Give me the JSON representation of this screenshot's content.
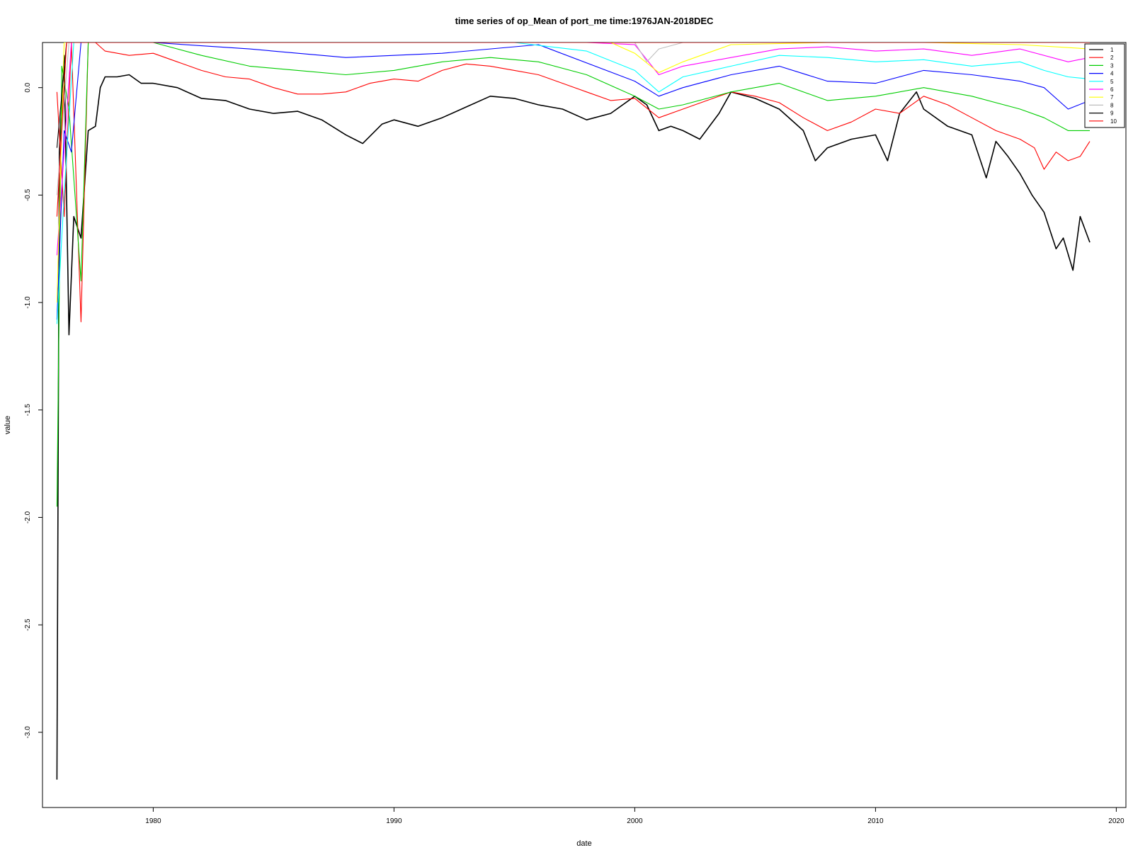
{
  "chart_data": {
    "type": "line",
    "title": "time series of op_Mean of port_me time:1976JAN-2018DEC",
    "xlabel": "date",
    "ylabel": "value",
    "xlim": [
      1975.4,
      2020.4
    ],
    "ylim": [
      -3.35,
      0.21
    ],
    "x_ticks": [
      1980,
      1990,
      2000,
      2010,
      2020
    ],
    "x_tick_labels": [
      "1980",
      "1990",
      "2000",
      "2010",
      "2020"
    ],
    "y_ticks": [
      0.0,
      -0.5,
      -1.0,
      -1.5,
      -2.0,
      -2.5,
      -3.0
    ],
    "y_tick_labels": [
      "0.0",
      "-0.5",
      "-1.0",
      "-1.5",
      "-2.0",
      "-2.5",
      "-3.0"
    ],
    "grid": false,
    "legend_position": "top-right",
    "series": [
      {
        "name": "1",
        "color": "#000000",
        "x": [
          1976.0,
          1976.1,
          1976.3,
          1976.5,
          1976.7,
          1977.0,
          1977.3,
          1977.6,
          1977.8,
          1978.0,
          1978.5,
          1979.0,
          1979.5,
          1980.0,
          1981.0,
          1982.0,
          1983.0,
          1984.0,
          1985.0,
          1986.0,
          1987.0,
          1988.0,
          1988.7,
          1989.5,
          1990.0,
          1991.0,
          1992.0,
          1993.0,
          1994.0,
          1995.0,
          1996.0,
          1997.0,
          1998.0,
          1999.0,
          2000.0,
          2000.5,
          2001.0,
          2001.5,
          2002.0,
          2002.7,
          2003.5,
          2004.0,
          2005.0,
          2006.0,
          2007.0,
          2007.5,
          2008.0,
          2009.0,
          2010.0,
          2010.5,
          2011.0,
          2011.7,
          2012.0,
          2013.0,
          2014.0,
          2014.6,
          2015.0,
          2015.5,
          2016.0,
          2016.5,
          2017.0,
          2017.5,
          2017.8,
          2018.2,
          2018.5,
          2018.9
        ],
        "y": [
          -3.22,
          -0.3,
          0.15,
          -1.15,
          -0.6,
          -0.7,
          -0.2,
          -0.18,
          0.0,
          0.05,
          0.05,
          0.06,
          0.02,
          0.02,
          0.0,
          -0.05,
          -0.06,
          -0.1,
          -0.12,
          -0.11,
          -0.15,
          -0.22,
          -0.26,
          -0.17,
          -0.15,
          -0.18,
          -0.14,
          -0.09,
          -0.04,
          -0.05,
          -0.08,
          -0.1,
          -0.15,
          -0.12,
          -0.04,
          -0.08,
          -0.2,
          -0.18,
          -0.2,
          -0.24,
          -0.12,
          -0.02,
          -0.05,
          -0.1,
          -0.2,
          -0.34,
          -0.28,
          -0.24,
          -0.22,
          -0.34,
          -0.12,
          -0.02,
          -0.1,
          -0.18,
          -0.22,
          -0.42,
          -0.25,
          -0.32,
          -0.4,
          -0.5,
          -0.58,
          -0.75,
          -0.7,
          -0.85,
          -0.6,
          -0.72
        ]
      },
      {
        "name": "2",
        "color": "#ff0000",
        "x": [
          1976.0,
          1976.3,
          1976.6,
          1977.0,
          1977.3,
          1977.6,
          1978.0,
          1979.0,
          1980.0,
          1981.0,
          1982.0,
          1983.0,
          1984.0,
          1985.0,
          1986.0,
          1987.0,
          1988.0,
          1989.0,
          1990.0,
          1991.0,
          1992.0,
          1993.0,
          1994.0,
          1995.0,
          1996.0,
          1997.0,
          1998.0,
          1999.0,
          2000.0,
          2001.0,
          2002.0,
          2003.0,
          2004.0,
          2005.0,
          2006.0,
          2007.0,
          2008.0,
          2009.0,
          2010.0,
          2011.0,
          2012.0,
          2013.0,
          2014.0,
          2015.0,
          2016.0,
          2016.6,
          2017.0,
          2017.5,
          2018.0,
          2018.5,
          2018.9
        ],
        "y": [
          -0.02,
          -0.6,
          0.21,
          -1.09,
          0.21,
          0.21,
          0.17,
          0.15,
          0.16,
          0.12,
          0.08,
          0.05,
          0.04,
          0.0,
          -0.03,
          -0.03,
          -0.02,
          0.02,
          0.04,
          0.03,
          0.08,
          0.11,
          0.1,
          0.08,
          0.06,
          0.02,
          -0.02,
          -0.06,
          -0.05,
          -0.14,
          -0.1,
          -0.06,
          -0.02,
          -0.04,
          -0.07,
          -0.14,
          -0.2,
          -0.16,
          -0.1,
          -0.12,
          -0.04,
          -0.08,
          -0.14,
          -0.2,
          -0.24,
          -0.28,
          -0.38,
          -0.3,
          -0.34,
          -0.32,
          -0.25
        ]
      },
      {
        "name": "3",
        "color": "#00cd00",
        "x": [
          1976.0,
          1976.2,
          1976.5,
          1977.0,
          1977.3,
          1977.6,
          1980.0,
          1982.0,
          1984.0,
          1986.0,
          1988.0,
          1990.0,
          1992.0,
          1994.0,
          1996.0,
          1998.0,
          2000.0,
          2001.0,
          2002.0,
          2004.0,
          2006.0,
          2008.0,
          2010.0,
          2012.0,
          2014.0,
          2016.0,
          2017.0,
          2018.0,
          2018.9
        ],
        "y": [
          -1.95,
          0.1,
          -0.1,
          -0.9,
          0.21,
          0.21,
          0.21,
          0.15,
          0.1,
          0.08,
          0.06,
          0.08,
          0.12,
          0.14,
          0.12,
          0.06,
          -0.04,
          -0.1,
          -0.08,
          -0.02,
          0.02,
          -0.06,
          -0.04,
          0.0,
          -0.04,
          -0.1,
          -0.14,
          -0.2,
          -0.2
        ]
      },
      {
        "name": "4",
        "color": "#0000ff",
        "x": [
          1976.0,
          1976.3,
          1976.6,
          1977.0,
          1977.5,
          1980.0,
          1984.0,
          1988.0,
          1992.0,
          1996.0,
          2000.0,
          2001.0,
          2002.0,
          2004.0,
          2006.0,
          2008.0,
          2010.0,
          2012.0,
          2014.0,
          2016.0,
          2017.0,
          2018.0,
          2018.9
        ],
        "y": [
          -1.08,
          -0.2,
          -0.3,
          0.21,
          0.21,
          0.21,
          0.18,
          0.14,
          0.16,
          0.2,
          0.03,
          -0.04,
          0.0,
          0.06,
          0.1,
          0.03,
          0.02,
          0.08,
          0.06,
          0.03,
          0.0,
          -0.1,
          -0.06
        ]
      },
      {
        "name": "5",
        "color": "#00ffff",
        "x": [
          1976.0,
          1976.3,
          1976.7,
          1977.2,
          1980.0,
          1985.0,
          1990.0,
          1995.0,
          1998.0,
          2000.0,
          2001.0,
          2002.0,
          2004.0,
          2006.0,
          2008.0,
          2010.0,
          2012.0,
          2014.0,
          2016.0,
          2017.0,
          2018.0,
          2018.9
        ],
        "y": [
          -1.1,
          -0.5,
          0.21,
          0.21,
          0.21,
          0.21,
          0.21,
          0.21,
          0.17,
          0.08,
          -0.02,
          0.05,
          0.1,
          0.15,
          0.14,
          0.12,
          0.13,
          0.1,
          0.12,
          0.08,
          0.05,
          0.04
        ]
      },
      {
        "name": "6",
        "color": "#ff00ff",
        "x": [
          1976.0,
          1976.3,
          1976.6,
          1977.2,
          1980.0,
          1990.0,
          1998.0,
          2000.0,
          2001.0,
          2002.0,
          2004.0,
          2006.0,
          2008.0,
          2010.0,
          2012.0,
          2014.0,
          2016.0,
          2018.0,
          2018.9
        ],
        "y": [
          -0.78,
          -0.3,
          0.21,
          0.21,
          0.21,
          0.21,
          0.21,
          0.2,
          0.06,
          0.1,
          0.14,
          0.18,
          0.19,
          0.17,
          0.18,
          0.15,
          0.18,
          0.12,
          0.14
        ]
      },
      {
        "name": "7",
        "color": "#ffff00",
        "x": [
          1976.0,
          1976.3,
          1976.8,
          1980.0,
          1999.0,
          2000.0,
          2001.0,
          2002.0,
          2004.0,
          2008.0,
          2012.0,
          2016.0,
          2018.9
        ],
        "y": [
          -1.0,
          0.21,
          0.21,
          0.21,
          0.21,
          0.16,
          0.07,
          0.12,
          0.2,
          0.21,
          0.21,
          0.2,
          0.18
        ]
      },
      {
        "name": "8",
        "color": "#bebebe",
        "x": [
          1976.0,
          1976.5,
          1980.0,
          1999.0,
          2000.0,
          2000.5,
          2001.0,
          2002.0,
          2018.9
        ],
        "y": [
          -0.5,
          0.21,
          0.21,
          0.21,
          0.21,
          0.12,
          0.18,
          0.21,
          0.21
        ]
      },
      {
        "name": "9",
        "color": "#000000",
        "x": [
          1976.0,
          1976.4,
          1976.8,
          1980.0,
          2018.9
        ],
        "y": [
          -0.28,
          0.21,
          0.21,
          0.21,
          0.21
        ]
      },
      {
        "name": "10",
        "color": "#ff0000",
        "x": [
          1976.0,
          1976.4,
          1976.8,
          1980.0,
          2018.9
        ],
        "y": [
          -0.6,
          0.21,
          0.21,
          0.21,
          0.21
        ]
      }
    ]
  }
}
